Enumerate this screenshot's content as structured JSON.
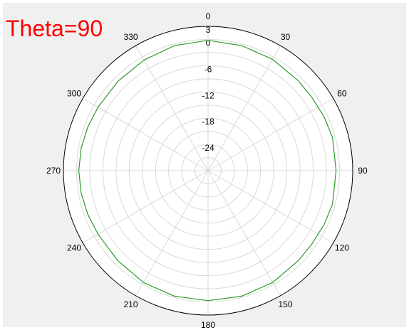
{
  "chart_data": {
    "type": "polar-line",
    "title": "Theta=90",
    "angular_ticks": [
      "0",
      "30",
      "60",
      "90",
      "120",
      "150",
      "180",
      "210",
      "240",
      "270",
      "300",
      "330"
    ],
    "radial_ticks": [
      "3",
      "0",
      "-6",
      "-12",
      "-18",
      "-24"
    ],
    "rlim": [
      -30,
      3
    ],
    "radial_rings": [
      -30,
      -27,
      -24,
      -21,
      -18,
      -15,
      -12,
      -9,
      -6,
      -3,
      0,
      3
    ],
    "direction": "clockwise",
    "zero_location": "top",
    "grid": true,
    "series": [
      {
        "color": "#2a9a2a",
        "angles_deg": [
          0,
          15,
          30,
          45,
          55,
          65,
          75,
          90,
          105,
          115,
          125,
          135,
          150,
          165,
          180,
          195,
          210,
          225,
          240,
          250,
          260,
          270,
          280,
          290,
          300,
          315,
          330,
          345,
          360
        ],
        "values_db": [
          -0.2,
          -0.4,
          -0.6,
          -0.9,
          -1.0,
          -0.8,
          -0.6,
          -0.8,
          -0.6,
          -0.8,
          -1.0,
          -0.9,
          -0.5,
          -0.3,
          -0.3,
          -0.3,
          -0.5,
          -0.9,
          -1.0,
          -0.8,
          -0.6,
          -0.5,
          -0.6,
          -0.8,
          -1.0,
          -1.0,
          -0.8,
          -0.4,
          -0.2
        ]
      }
    ]
  },
  "colors": {
    "background": "#f0f0f0",
    "plot_area": "#ffffff",
    "grid": "#d9d9d9",
    "outer_ring": "#000000",
    "title": "#ff0000"
  }
}
